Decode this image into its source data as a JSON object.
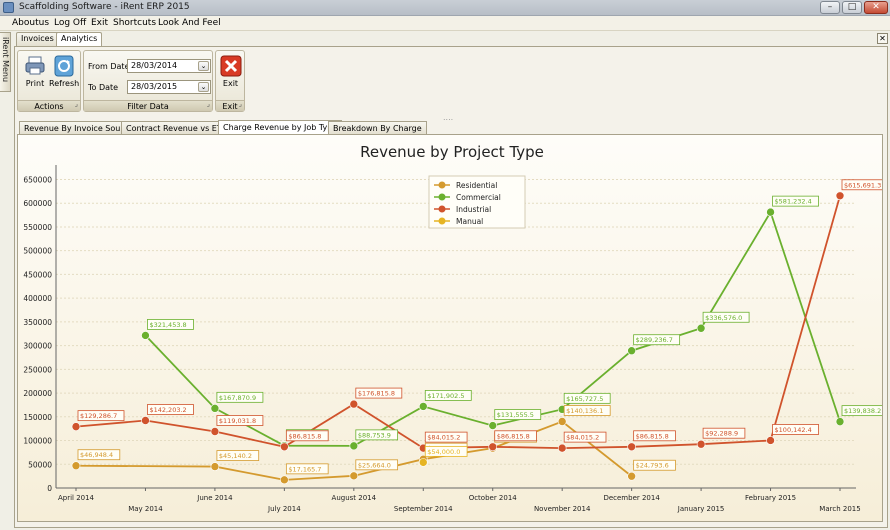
{
  "window": {
    "title": "Scaffolding Software - iRent ERP 2015"
  },
  "menu": [
    "Aboutus",
    "Log Off",
    "Exit",
    "Shortcuts",
    "Look And Feel"
  ],
  "side_tab": "iRent Menu",
  "doc_tabs": [
    "Invoices",
    "Analytics"
  ],
  "ribbon": {
    "actions": {
      "print": "Print",
      "refresh": "Refresh",
      "caption": "Actions"
    },
    "filter": {
      "from_label": "From Date",
      "from_value": "28/03/2014",
      "to_label": "To Date",
      "to_value": "28/03/2015",
      "caption": "Filter Data"
    },
    "exit": {
      "label": "Exit",
      "caption": "Exit"
    }
  },
  "chart_tabs": [
    "Revenue By Invoice Source",
    "Contract Revenue vs ETC",
    "Charge Revenue by Job Type",
    "Breakdown By Charge"
  ],
  "chart_data": {
    "type": "line",
    "title": "Revenue by Project Type",
    "xlabel": "",
    "ylabel": "",
    "ylim": [
      0,
      670000
    ],
    "yticks": [
      0,
      50000,
      100000,
      150000,
      200000,
      250000,
      300000,
      350000,
      400000,
      450000,
      500000,
      550000,
      600000,
      650000
    ],
    "ytick_labels": [
      "0",
      "50000",
      "100000",
      "150000",
      "200000",
      "250000",
      "300000",
      "350000",
      "400000",
      "450000",
      "500000",
      "550000",
      "600000",
      "650000"
    ],
    "categories": [
      "April 2014",
      "May 2014",
      "June 2014",
      "July 2014",
      "August 2014",
      "September 2014",
      "October 2014",
      "November 2014",
      "December 2014",
      "January 2015",
      "February 2015",
      "March 2015"
    ],
    "legend_position": "top-center",
    "series": [
      {
        "name": "Residential",
        "color": "#d49a2e",
        "points": [
          {
            "i": 0,
            "v": 46948.4,
            "label": "$46,948.4"
          },
          {
            "i": 2,
            "v": 45140.2,
            "label": "$45,140.2"
          },
          {
            "i": 3,
            "v": 17165.7,
            "label": "$17,165.7"
          },
          {
            "i": 4,
            "v": 25664.0,
            "label": "$25,664.0"
          },
          {
            "i": 5,
            "v": 60692.1,
            "label": "$60,692.1"
          },
          {
            "i": 6,
            "v": 84000.0,
            "label": "$84,000.0"
          },
          {
            "i": 7,
            "v": 140136.1,
            "label": "$140,136.1"
          },
          {
            "i": 8,
            "v": 24793.6,
            "label": "$24,793.6"
          }
        ]
      },
      {
        "name": "Commercial",
        "color": "#6ab02e",
        "points": [
          {
            "i": 1,
            "v": 321453.8,
            "label": "$321,453.8"
          },
          {
            "i": 2,
            "v": 167870.9,
            "label": "$167,870.9"
          },
          {
            "i": 3,
            "v": 89126.1,
            "label": "$89,126.1"
          },
          {
            "i": 4,
            "v": 88753.9,
            "label": "$88,753.9"
          },
          {
            "i": 5,
            "v": 171902.5,
            "label": "$171,902.5"
          },
          {
            "i": 6,
            "v": 131555.5,
            "label": "$131,555.5"
          },
          {
            "i": 7,
            "v": 165727.5,
            "label": "$165,727.5"
          },
          {
            "i": 8,
            "v": 289236.7,
            "label": "$289,236.7"
          },
          {
            "i": 9,
            "v": 336576.0,
            "label": "$336,576.0"
          },
          {
            "i": 10,
            "v": 581232.4,
            "label": "$581,232.4"
          },
          {
            "i": 11,
            "v": 139838.2,
            "label": "$139,838.2"
          }
        ]
      },
      {
        "name": "Industrial",
        "color": "#d0532c",
        "points": [
          {
            "i": 0,
            "v": 129286.7,
            "label": "$129,286.7"
          },
          {
            "i": 1,
            "v": 142203.2,
            "label": "$142,203.2"
          },
          {
            "i": 2,
            "v": 119031.8,
            "label": "$119,031.8"
          },
          {
            "i": 3,
            "v": 86815.8,
            "label": "$86,815.8"
          },
          {
            "i": 4,
            "v": 176815.8,
            "label": "$176,815.8"
          },
          {
            "i": 5,
            "v": 84015.2,
            "label": "$84,015.2"
          },
          {
            "i": 6,
            "v": 86815.8,
            "label": "$86,815.8"
          },
          {
            "i": 7,
            "v": 84015.2,
            "label": "$84,015.2"
          },
          {
            "i": 8,
            "v": 86815.8,
            "label": "$86,815.8"
          },
          {
            "i": 9,
            "v": 92288.9,
            "label": "$92,288.9"
          },
          {
            "i": 10,
            "v": 100142.4,
            "label": "$100,142.4"
          },
          {
            "i": 11,
            "v": 615691.3,
            "label": "$615,691.3"
          }
        ]
      },
      {
        "name": "Manual",
        "color": "#e6b422",
        "points": [
          {
            "i": 5,
            "v": 54000.0,
            "label": "$54,000.0"
          }
        ]
      }
    ]
  }
}
